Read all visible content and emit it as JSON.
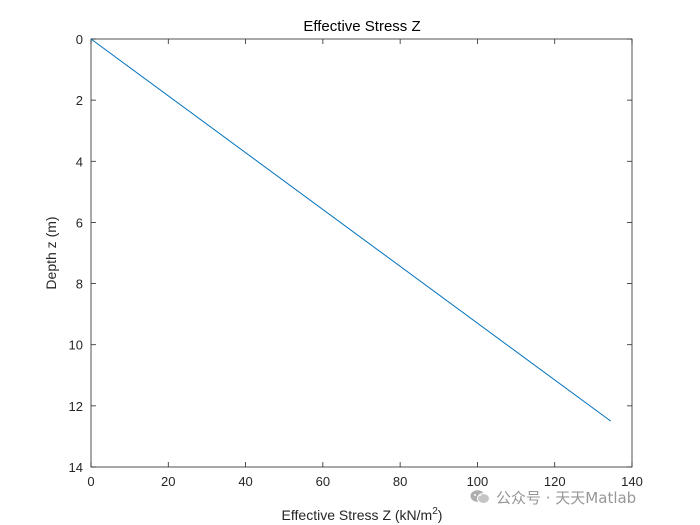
{
  "chart_data": {
    "type": "line",
    "title": "Effective Stress Z",
    "xlabel": "Effective Stress Z (kN/m",
    "xlabel_sup": "2",
    "xlabel_end": ")",
    "ylabel": "Depth z (m)",
    "xlim": [
      0,
      140
    ],
    "ylim": [
      0,
      14
    ],
    "y_reversed": true,
    "x_ticks": [
      0,
      20,
      40,
      60,
      80,
      100,
      120,
      140
    ],
    "y_ticks": [
      0,
      2,
      4,
      6,
      8,
      10,
      12,
      14
    ],
    "grid": false,
    "series": [
      {
        "x": [
          0,
          134.5
        ],
        "y": [
          0,
          12.5
        ],
        "color": "#0072BD"
      }
    ]
  },
  "watermark": {
    "text": "公众号 · 天天Matlab",
    "icon": "wechat-icon"
  }
}
